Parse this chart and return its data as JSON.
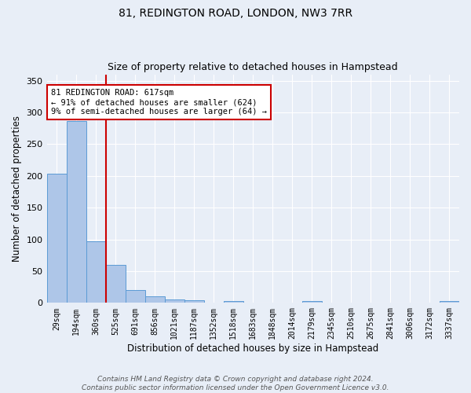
{
  "title": "81, REDINGTON ROAD, LONDON, NW3 7RR",
  "subtitle": "Size of property relative to detached houses in Hampstead",
  "xlabel": "Distribution of detached houses by size in Hampstead",
  "ylabel": "Number of detached properties",
  "categories": [
    "29sqm",
    "194sqm",
    "360sqm",
    "525sqm",
    "691sqm",
    "856sqm",
    "1021sqm",
    "1187sqm",
    "1352sqm",
    "1518sqm",
    "1683sqm",
    "1848sqm",
    "2014sqm",
    "2179sqm",
    "2345sqm",
    "2510sqm",
    "2675sqm",
    "2841sqm",
    "3006sqm",
    "3172sqm",
    "3337sqm"
  ],
  "bar_heights": [
    203,
    287,
    97,
    60,
    20,
    11,
    5,
    4,
    0,
    3,
    0,
    0,
    0,
    3,
    0,
    0,
    0,
    0,
    0,
    0,
    3
  ],
  "bar_color": "#aec6e8",
  "bar_edge_color": "#5b9bd5",
  "red_line_x": 2.5,
  "annotation_line1": "81 REDINGTON ROAD: 617sqm",
  "annotation_line2": "← 91% of detached houses are smaller (624)",
  "annotation_line3": "9% of semi-detached houses are larger (64) →",
  "annotation_box_color": "white",
  "annotation_box_edge_color": "#cc0000",
  "red_line_color": "#cc0000",
  "ylim": [
    0,
    360
  ],
  "yticks": [
    0,
    50,
    100,
    150,
    200,
    250,
    300,
    350
  ],
  "background_color": "#e8eef7",
  "grid_color": "white",
  "footnote": "Contains HM Land Registry data © Crown copyright and database right 2024.\nContains public sector information licensed under the Open Government Licence v3.0."
}
